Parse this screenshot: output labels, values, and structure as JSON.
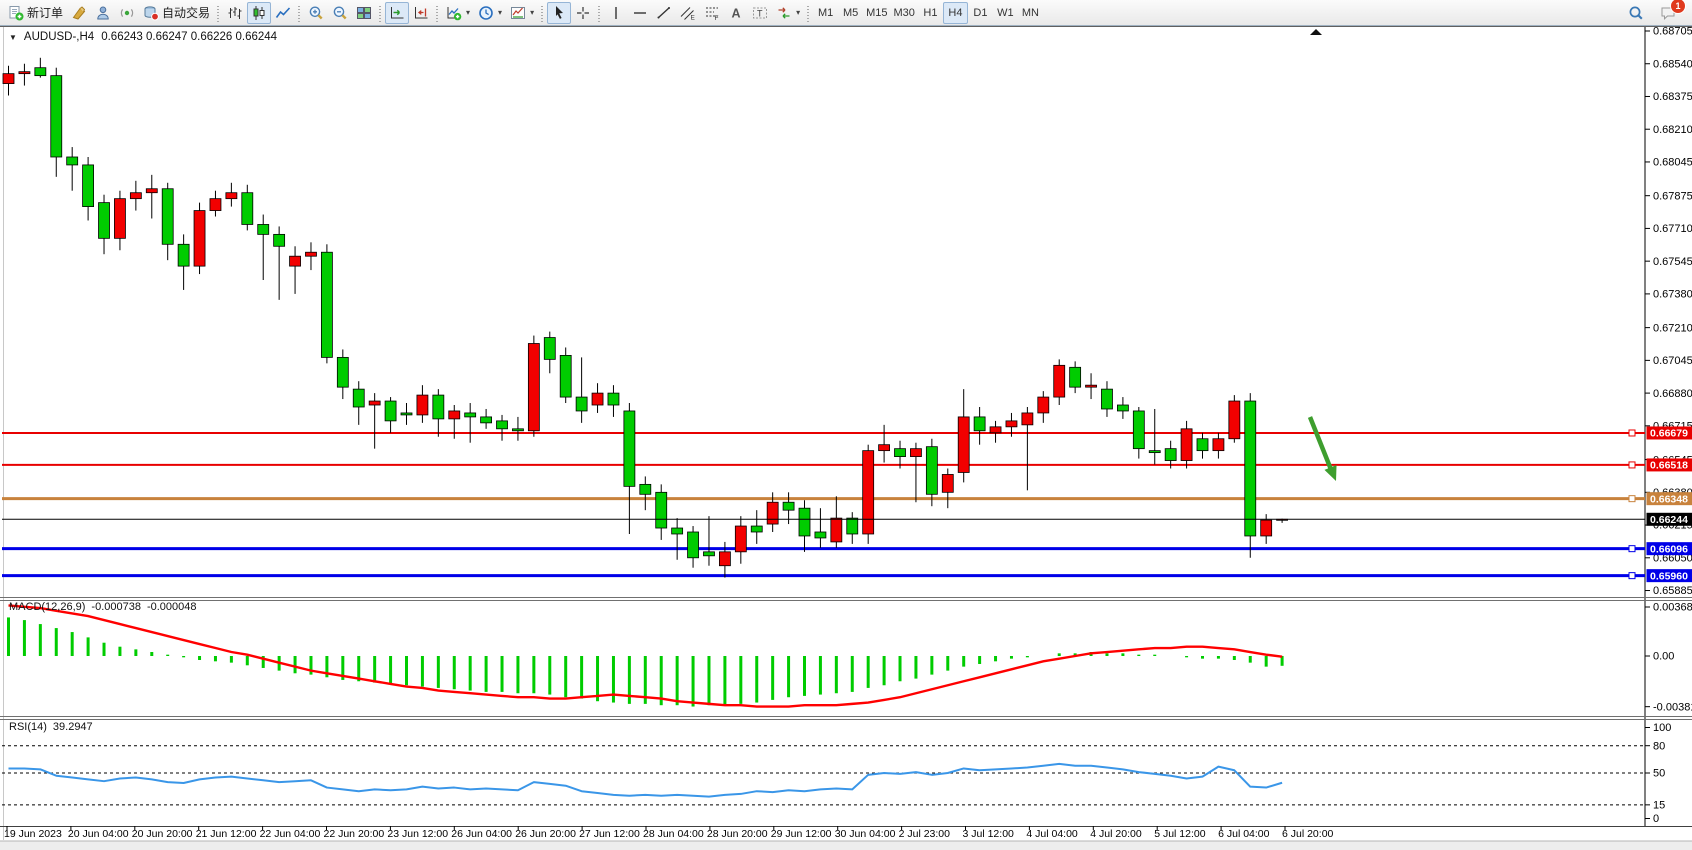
{
  "toolbar": {
    "buttons": [
      {
        "name": "new-order-button",
        "icon": "new-order-icon",
        "label": "新订单"
      },
      {
        "name": "styler-button",
        "icon": "brush-icon"
      },
      {
        "name": "profile-button",
        "icon": "profile-icon"
      },
      {
        "name": "signal-button",
        "icon": "signal-icon"
      },
      {
        "name": "auto-trading-button",
        "icon": "autotrade-icon",
        "label": "自动交易"
      },
      {
        "sep": true
      },
      {
        "name": "bar-chart-button",
        "icon": "bar-chart-icon"
      },
      {
        "name": "candlestick-button",
        "icon": "candlestick-icon",
        "active": true
      },
      {
        "name": "line-chart-button",
        "icon": "line-chart-icon"
      },
      {
        "sep": true
      },
      {
        "name": "zoom-in-button",
        "icon": "zoom-in-icon"
      },
      {
        "name": "zoom-out-button",
        "icon": "zoom-out-icon"
      },
      {
        "name": "tile-windows-button",
        "icon": "tile-windows-icon"
      },
      {
        "sep": true
      },
      {
        "name": "auto-scroll-button",
        "icon": "auto-scroll-icon",
        "active": true
      },
      {
        "name": "chart-shift-button",
        "icon": "chart-shift-icon"
      },
      {
        "sep": true
      },
      {
        "name": "new-chart-button",
        "icon": "new-chart-icon",
        "caret": true
      },
      {
        "name": "periods-button",
        "icon": "clock-icon",
        "caret": true
      },
      {
        "name": "templates-button",
        "icon": "templates-icon",
        "caret": true
      },
      {
        "sep": true
      },
      {
        "name": "cursor-button",
        "icon": "cursor-icon",
        "active": true
      },
      {
        "name": "crosshair-button",
        "icon": "crosshair-icon"
      },
      {
        "sep": true
      },
      {
        "name": "vertical-line-button",
        "icon": "vertical-line-icon"
      },
      {
        "name": "horizontal-line-button",
        "icon": "horizontal-line-icon"
      },
      {
        "name": "trendline-button",
        "icon": "trendline-icon"
      },
      {
        "name": "channel-button",
        "icon": "channel-icon"
      },
      {
        "name": "fibonacci-button",
        "icon": "fibonacci-icon"
      },
      {
        "name": "text-button",
        "icon": "text-icon"
      },
      {
        "name": "label-button",
        "icon": "label-icon"
      },
      {
        "name": "arrows-button",
        "icon": "arrows-icon",
        "caret": true
      },
      {
        "sep": true
      }
    ],
    "timeframes": [
      {
        "name": "tf-m1",
        "label": "M1"
      },
      {
        "name": "tf-m5",
        "label": "M5"
      },
      {
        "name": "tf-m15",
        "label": "M15"
      },
      {
        "name": "tf-m30",
        "label": "M30"
      },
      {
        "name": "tf-h1",
        "label": "H1"
      },
      {
        "name": "tf-h4",
        "label": "H4",
        "active": true
      },
      {
        "name": "tf-d1",
        "label": "D1"
      },
      {
        "name": "tf-w1",
        "label": "W1"
      },
      {
        "name": "tf-mn",
        "label": "MN"
      }
    ],
    "right": [
      {
        "name": "search-button",
        "icon": "search-icon"
      },
      {
        "name": "notifications-button",
        "icon": "chat-icon",
        "badge": "1"
      }
    ]
  },
  "chart": {
    "symbol_period": "AUDUSD-,H4",
    "quote": "0.66243 0.66247 0.66226 0.66244"
  },
  "indicators": {
    "macd": {
      "label": "MACD(12,26,9)",
      "value1": "-0.000738",
      "value2": "-0.000048"
    },
    "rsi": {
      "label": "RSI(14)",
      "value": "39.2947"
    }
  },
  "axes": {
    "price_ticks": [
      "0.68705",
      "0.68540",
      "0.68375",
      "0.68210",
      "0.68045",
      "0.67875",
      "0.67710",
      "0.67545",
      "0.67380",
      "0.67210",
      "0.67045",
      "0.66880",
      "0.66715",
      "0.66545",
      "0.66380",
      "0.66215",
      "0.66050",
      "0.65885"
    ],
    "macd_ticks": [
      {
        "label": "0.003684",
        "value": 0.003684
      },
      {
        "label": "0.00",
        "value": 0
      },
      {
        "label": "-0.00381",
        "value": -0.00381
      }
    ],
    "rsi_ticks": [
      {
        "label": "100",
        "value": 100
      },
      {
        "label": "80",
        "value": 80
      },
      {
        "label": "50",
        "value": 50
      },
      {
        "label": "15",
        "value": 15
      },
      {
        "label": "0",
        "value": 0
      }
    ],
    "dates": [
      "19 Jun 2023",
      "20 Jun 04:00",
      "20 Jun 20:00",
      "21 Jun 12:00",
      "22 Jun 04:00",
      "22 Jun 20:00",
      "23 Jun 12:00",
      "26 Jun 04:00",
      "26 Jun 20:00",
      "27 Jun 12:00",
      "28 Jun 04:00",
      "28 Jun 20:00",
      "29 Jun 12:00",
      "30 Jun 04:00",
      "2 Jul 23:00",
      "3 Jul 12:00",
      "4 Jul 04:00",
      "4 Jul 20:00",
      "5 Jul 12:00",
      "6 Jul 04:00",
      "6 Jul 20:00"
    ]
  },
  "colors": {
    "bull": "#F20000",
    "bear": "#00CC00",
    "macd_histogram": "#00CC00",
    "macd_signal": "#FF0000",
    "rsi_line": "#3A96E8",
    "level_red": "#E80000",
    "level_orange": "#C8823C",
    "level_blue": "#0000E8",
    "current_price": "#000000",
    "arrow_green": "#3E9E2E"
  },
  "chart_data": [
    {
      "type": "candlestick",
      "title": "AUDUSD-,H4",
      "timeframe": "H4",
      "ylim": [
        0.65885,
        0.68705
      ],
      "x_labels": [
        "19 Jun 2023",
        "20 Jun 04:00",
        "20 Jun 20:00",
        "21 Jun 12:00",
        "22 Jun 04:00",
        "22 Jun 20:00",
        "23 Jun 12:00",
        "26 Jun 04:00",
        "26 Jun 20:00",
        "27 Jun 12:00",
        "28 Jun 04:00",
        "28 Jun 20:00",
        "29 Jun 12:00",
        "30 Jun 04:00",
        "2 Jul 23:00",
        "3 Jul 12:00",
        "4 Jul 04:00",
        "4 Jul 20:00",
        "5 Jul 12:00",
        "6 Jul 04:00",
        "6 Jul 20:00"
      ],
      "current_quote": {
        "open": 0.66243,
        "high": 0.66247,
        "low": 0.66226,
        "close": 0.66244
      },
      "levels": [
        {
          "price": 0.66679,
          "label": "0.66679",
          "color": "#E80000",
          "width": 2
        },
        {
          "price": 0.66518,
          "label": "0.66518",
          "color": "#E80000",
          "width": 2
        },
        {
          "price": 0.66348,
          "label": "0.66348",
          "color": "#C8823C",
          "width": 3
        },
        {
          "price": 0.66096,
          "label": "0.66096",
          "color": "#0000E8",
          "width": 3
        },
        {
          "price": 0.6596,
          "label": "0.65960",
          "color": "#0000E8",
          "width": 3
        }
      ],
      "current_price": {
        "price": 0.66244,
        "label": "0.66244",
        "color": "#000000"
      },
      "arrow_annotation": {
        "from": [
          1310,
          417
        ],
        "to": [
          1336,
          481
        ],
        "color": "#3E9E2E"
      },
      "candles": [
        [
          0.6844,
          0.6853,
          0.6838,
          0.6849
        ],
        [
          0.6849,
          0.6854,
          0.6843,
          0.685
        ],
        [
          0.6852,
          0.6857,
          0.6847,
          0.6848
        ],
        [
          0.6848,
          0.6852,
          0.6797,
          0.6807
        ],
        [
          0.6807,
          0.6812,
          0.679,
          0.6803
        ],
        [
          0.6803,
          0.6807,
          0.6775,
          0.6782
        ],
        [
          0.6784,
          0.6788,
          0.6758,
          0.6766
        ],
        [
          0.6766,
          0.679,
          0.676,
          0.6786
        ],
        [
          0.6786,
          0.6795,
          0.678,
          0.6789
        ],
        [
          0.6789,
          0.6798,
          0.6776,
          0.6791
        ],
        [
          0.6791,
          0.6794,
          0.6755,
          0.6763
        ],
        [
          0.6763,
          0.6768,
          0.674,
          0.6752
        ],
        [
          0.6752,
          0.6784,
          0.6748,
          0.678
        ],
        [
          0.678,
          0.679,
          0.6777,
          0.6786
        ],
        [
          0.6786,
          0.6794,
          0.6782,
          0.6789
        ],
        [
          0.6789,
          0.6793,
          0.677,
          0.6773
        ],
        [
          0.6773,
          0.6778,
          0.6745,
          0.6768
        ],
        [
          0.6768,
          0.6772,
          0.6735,
          0.6762
        ],
        [
          0.6752,
          0.6762,
          0.6738,
          0.6757
        ],
        [
          0.6757,
          0.6764,
          0.675,
          0.6759
        ],
        [
          0.6759,
          0.6763,
          0.6703,
          0.6706
        ],
        [
          0.6706,
          0.671,
          0.6685,
          0.6691
        ],
        [
          0.669,
          0.6694,
          0.6672,
          0.6681
        ],
        [
          0.6682,
          0.6688,
          0.666,
          0.6684
        ],
        [
          0.6684,
          0.6686,
          0.6668,
          0.6674
        ],
        [
          0.6678,
          0.6683,
          0.6672,
          0.6677
        ],
        [
          0.6677,
          0.6692,
          0.6673,
          0.6687
        ],
        [
          0.6687,
          0.669,
          0.6666,
          0.6675
        ],
        [
          0.6675,
          0.6682,
          0.6665,
          0.6679
        ],
        [
          0.6678,
          0.6683,
          0.6663,
          0.6676
        ],
        [
          0.6676,
          0.668,
          0.667,
          0.6673
        ],
        [
          0.6674,
          0.6677,
          0.6664,
          0.667
        ],
        [
          0.667,
          0.6676,
          0.6664,
          0.6669
        ],
        [
          0.6669,
          0.6717,
          0.6666,
          0.6713
        ],
        [
          0.6716,
          0.6719,
          0.6698,
          0.6705
        ],
        [
          0.6707,
          0.6711,
          0.6683,
          0.6686
        ],
        [
          0.6686,
          0.6706,
          0.6673,
          0.6679
        ],
        [
          0.6682,
          0.6693,
          0.6678,
          0.6688
        ],
        [
          0.6688,
          0.6692,
          0.6676,
          0.6682
        ],
        [
          0.6679,
          0.6683,
          0.6617,
          0.6641
        ],
        [
          0.6642,
          0.6646,
          0.6629,
          0.6637
        ],
        [
          0.6638,
          0.6642,
          0.6614,
          0.662
        ],
        [
          0.662,
          0.6625,
          0.6604,
          0.6617
        ],
        [
          0.6618,
          0.6621,
          0.66,
          0.6605
        ],
        [
          0.6608,
          0.6626,
          0.6601,
          0.6606
        ],
        [
          0.6601,
          0.6613,
          0.6595,
          0.6608
        ],
        [
          0.6608,
          0.6626,
          0.6602,
          0.6621
        ],
        [
          0.6621,
          0.6629,
          0.6612,
          0.6618
        ],
        [
          0.6622,
          0.6638,
          0.6618,
          0.6633
        ],
        [
          0.6633,
          0.6638,
          0.6622,
          0.6629
        ],
        [
          0.663,
          0.6634,
          0.6608,
          0.6616
        ],
        [
          0.6618,
          0.663,
          0.661,
          0.6615
        ],
        [
          0.6613,
          0.6636,
          0.661,
          0.6625
        ],
        [
          0.6625,
          0.6628,
          0.6612,
          0.6617
        ],
        [
          0.6617,
          0.6662,
          0.6612,
          0.6659
        ],
        [
          0.6659,
          0.6672,
          0.6653,
          0.6662
        ],
        [
          0.666,
          0.6664,
          0.665,
          0.6656
        ],
        [
          0.6656,
          0.6663,
          0.6633,
          0.666
        ],
        [
          0.6661,
          0.6665,
          0.6631,
          0.6637
        ],
        [
          0.6638,
          0.665,
          0.663,
          0.6647
        ],
        [
          0.6648,
          0.669,
          0.6643,
          0.6676
        ],
        [
          0.6676,
          0.6681,
          0.6662,
          0.6669
        ],
        [
          0.6668,
          0.6674,
          0.6663,
          0.6671
        ],
        [
          0.6671,
          0.6678,
          0.6666,
          0.6674
        ],
        [
          0.6672,
          0.6681,
          0.6639,
          0.6678
        ],
        [
          0.6678,
          0.6689,
          0.6673,
          0.6686
        ],
        [
          0.6686,
          0.6705,
          0.6682,
          0.6702
        ],
        [
          0.6701,
          0.6704,
          0.6688,
          0.6691
        ],
        [
          0.6691,
          0.6698,
          0.6685,
          0.6692
        ],
        [
          0.669,
          0.6694,
          0.6676,
          0.668
        ],
        [
          0.6682,
          0.6686,
          0.6675,
          0.6679
        ],
        [
          0.6679,
          0.6681,
          0.6655,
          0.666
        ],
        [
          0.6659,
          0.668,
          0.6652,
          0.6658
        ],
        [
          0.666,
          0.6664,
          0.665,
          0.6654
        ],
        [
          0.6654,
          0.6674,
          0.665,
          0.667
        ],
        [
          0.6665,
          0.6668,
          0.6655,
          0.6659
        ],
        [
          0.6659,
          0.6668,
          0.6655,
          0.6665
        ],
        [
          0.6665,
          0.6687,
          0.6663,
          0.6684
        ],
        [
          0.6684,
          0.6688,
          0.6605,
          0.6616
        ],
        [
          0.6616,
          0.6627,
          0.6612,
          0.6624
        ],
        [
          0.66243,
          0.66247,
          0.66226,
          0.66244
        ]
      ]
    },
    {
      "type": "bar",
      "name": "MACD(12,26,9)",
      "ylim": [
        -0.00381,
        0.003684
      ],
      "last_values": [
        -0.000738,
        -4.8e-05
      ],
      "values": [
        0.0029,
        0.0027,
        0.0024,
        0.0021,
        0.0018,
        0.0014,
        0.001,
        0.0007,
        0.0005,
        0.0003,
        0.0001,
        -0.0001,
        -0.0003,
        -0.0004,
        -0.0005,
        -0.0007,
        -0.0009,
        -0.0011,
        -0.0013,
        -0.0014,
        -0.0016,
        -0.0018,
        -0.0019,
        -0.002,
        -0.0021,
        -0.0022,
        -0.0023,
        -0.0024,
        -0.0025,
        -0.0026,
        -0.0027,
        -0.0027,
        -0.0028,
        -0.0028,
        -0.0029,
        -0.0031,
        -0.0032,
        -0.0034,
        -0.0035,
        -0.0036,
        -0.0036,
        -0.0037,
        -0.0037,
        -0.0038,
        -0.0037,
        -0.0037,
        -0.0036,
        -0.0035,
        -0.0033,
        -0.0031,
        -0.003,
        -0.0029,
        -0.0028,
        -0.0027,
        -0.0024,
        -0.0022,
        -0.0019,
        -0.0017,
        -0.0014,
        -0.0011,
        -0.0008,
        -0.0006,
        -0.0004,
        -0.0002,
        -0.0001,
        0.0,
        0.0002,
        0.0002,
        0.0003,
        0.0002,
        0.0002,
        0.0001,
        0.0001,
        0.0,
        -0.0001,
        -0.0002,
        -0.0002,
        -0.0003,
        -0.0005,
        -0.0008,
        -0.000738
      ],
      "signal": [
        0.0038,
        0.0037,
        0.0036,
        0.0034,
        0.0032,
        0.003,
        0.0027,
        0.0024,
        0.0021,
        0.0018,
        0.0015,
        0.0012,
        0.0009,
        0.0006,
        0.0003,
        0.0001,
        -0.0002,
        -0.0005,
        -0.0008,
        -0.0011,
        -0.0013,
        -0.0015,
        -0.0017,
        -0.0019,
        -0.0021,
        -0.0023,
        -0.0024,
        -0.0026,
        -0.0027,
        -0.0028,
        -0.0029,
        -0.003,
        -0.0031,
        -0.0031,
        -0.0032,
        -0.0032,
        -0.0031,
        -0.003,
        -0.0029,
        -0.003,
        -0.0031,
        -0.0032,
        -0.0034,
        -0.0035,
        -0.0036,
        -0.0037,
        -0.0037,
        -0.0038,
        -0.0038,
        -0.0038,
        -0.0037,
        -0.0037,
        -0.0037,
        -0.0036,
        -0.0035,
        -0.0033,
        -0.0031,
        -0.0028,
        -0.0025,
        -0.0022,
        -0.0019,
        -0.0016,
        -0.0013,
        -0.001,
        -0.0007,
        -0.0004,
        -0.0002,
        0.0,
        0.0002,
        0.0003,
        0.0004,
        0.0005,
        0.0006,
        0.0006,
        0.0007,
        0.0007,
        0.0006,
        0.0005,
        0.0003,
        0.0001,
        -4.8e-05
      ]
    },
    {
      "type": "line",
      "name": "RSI(14)",
      "ylim": [
        0,
        100
      ],
      "last_value": 39.2947,
      "level_lines": [
        80,
        50,
        15
      ],
      "values": [
        55,
        55,
        54,
        47,
        45,
        43,
        41,
        44,
        45,
        43,
        40,
        39,
        43,
        45,
        46,
        44,
        42,
        40,
        41,
        42,
        34,
        32,
        30,
        32,
        31,
        32,
        35,
        33,
        34,
        32,
        33,
        32,
        31,
        40,
        38,
        36,
        30,
        28,
        26,
        25,
        26,
        25,
        26,
        25,
        24,
        26,
        27,
        30,
        29,
        31,
        30,
        32,
        33,
        32,
        48,
        50,
        49,
        51,
        48,
        50,
        55,
        53,
        54,
        55,
        56,
        58,
        60,
        58,
        58,
        56,
        54,
        51,
        49,
        47,
        44,
        46,
        57,
        53,
        35,
        34,
        39.29
      ]
    }
  ]
}
